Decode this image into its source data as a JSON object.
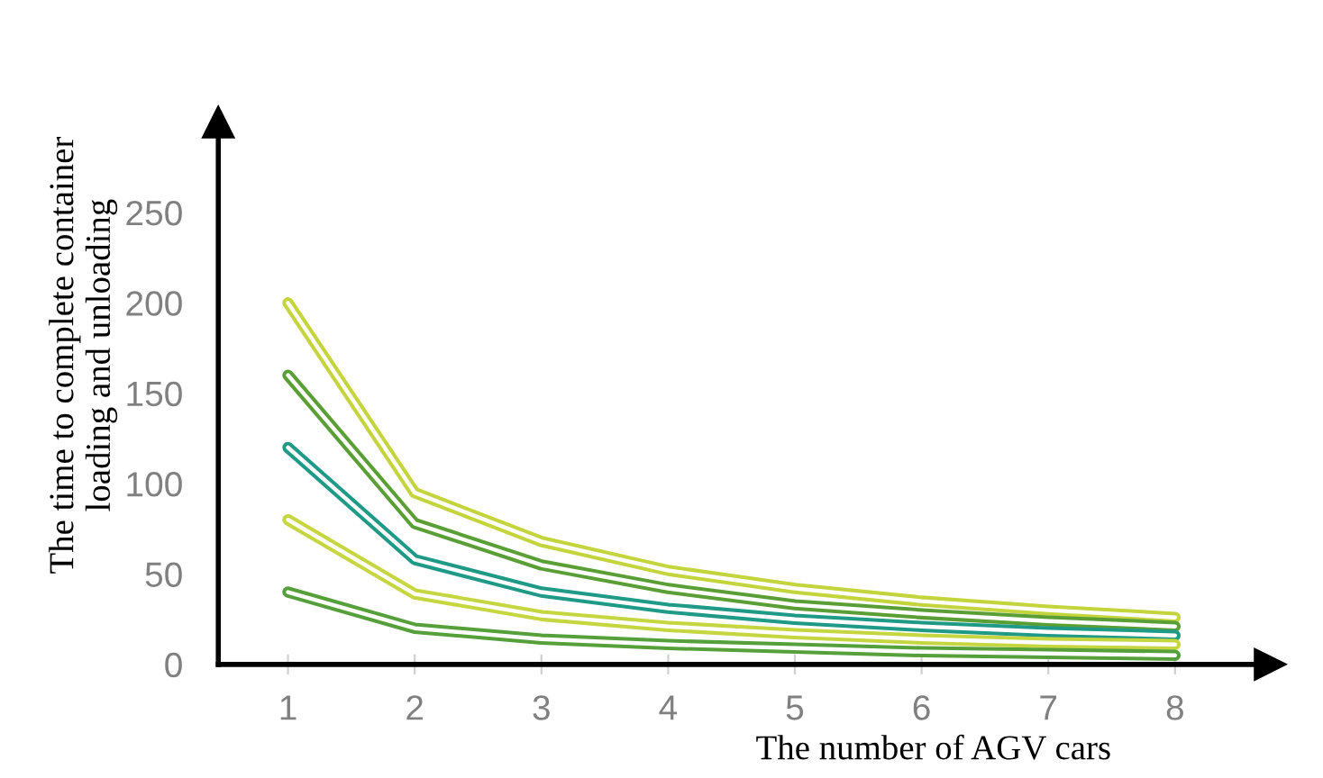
{
  "chart_data": {
    "type": "line",
    "xlabel": "The number of AGV cars",
    "ylabel": "The time to complete container\nloading and unloading",
    "categories": [
      "1",
      "2",
      "3",
      "4",
      "5",
      "6",
      "7",
      "8"
    ],
    "series": [
      {
        "color": "#c3d43c",
        "values": [
          200,
          95,
          68,
          52,
          42,
          35,
          30,
          26
        ]
      },
      {
        "color": "#5a9e36",
        "values": [
          160,
          78,
          55,
          42,
          33,
          28,
          24,
          21
        ]
      },
      {
        "color": "#1f9a86",
        "values": [
          120,
          58,
          40,
          31,
          25,
          21,
          18,
          16
        ]
      },
      {
        "color": "#c6d640",
        "values": [
          80,
          39,
          27,
          21,
          17,
          14,
          12,
          11
        ]
      },
      {
        "color": "#55a03a",
        "values": [
          40,
          20,
          14,
          11,
          9,
          7,
          6,
          5
        ]
      }
    ],
    "ylim": [
      0,
      300
    ],
    "yticks": [
      0,
      50,
      100,
      150,
      200,
      250
    ],
    "grid": false,
    "marker": "none",
    "line_style": "solid"
  }
}
